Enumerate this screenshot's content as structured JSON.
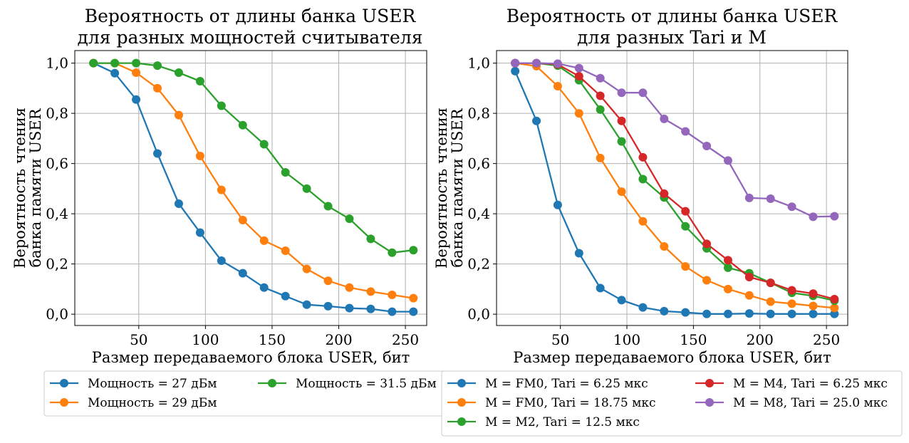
{
  "chart_data": [
    {
      "type": "line",
      "title_line1": "Вероятность от длины банка USER",
      "title_line2": "для разных мощностей считывателя",
      "xlabel": "Размер передаваемого блока USER, бит",
      "ylabel_line1": "Вероятность чтения",
      "ylabel_line2": "банка памяти USER",
      "xlim": [
        2,
        266
      ],
      "ylim": [
        -0.045,
        1.05
      ],
      "xticks": [
        50,
        100,
        150,
        200,
        250
      ],
      "yticks": [
        0.0,
        0.2,
        0.4,
        0.6,
        0.8,
        1.0
      ],
      "ytick_labels": [
        "0,0",
        "0,2",
        "0,4",
        "0,6",
        "0,8",
        "1,0"
      ],
      "grid": true,
      "legend_placement": "below",
      "x": [
        16,
        32,
        48,
        64,
        80,
        96,
        112,
        128,
        144,
        160,
        176,
        192,
        208,
        224,
        240,
        256
      ],
      "series": [
        {
          "name": "Мощность = 27 дБм",
          "color": "#1f77b4",
          "values": [
            1.0,
            0.96,
            0.855,
            0.64,
            0.44,
            0.325,
            0.213,
            0.163,
            0.106,
            0.072,
            0.038,
            0.032,
            0.024,
            0.021,
            0.01,
            0.01
          ]
        },
        {
          "name": "Мощность = 29 дБм",
          "color": "#ff7f0e",
          "values": [
            1.0,
            1.0,
            0.962,
            0.9,
            0.793,
            0.63,
            0.495,
            0.375,
            0.293,
            0.253,
            0.18,
            0.133,
            0.106,
            0.09,
            0.077,
            0.064
          ]
        },
        {
          "name": "Мощность = 31.5 дБм",
          "color": "#2ca02c",
          "values": [
            1.0,
            1.0,
            1.0,
            0.99,
            0.962,
            0.928,
            0.83,
            0.753,
            0.677,
            0.565,
            0.5,
            0.43,
            0.38,
            0.3,
            0.245,
            0.255
          ]
        }
      ]
    },
    {
      "type": "line",
      "title_line1": "Вероятность от длины банка USER",
      "title_line2": "для разных Tari и M",
      "xlabel": "Размер передаваемого блока USER, бит",
      "ylabel_line1": "Вероятность чтения",
      "ylabel_line2": "банка памяти USER",
      "xlim": [
        2,
        266
      ],
      "ylim": [
        -0.045,
        1.05
      ],
      "xticks": [
        50,
        100,
        150,
        200,
        250
      ],
      "yticks": [
        0.0,
        0.2,
        0.4,
        0.6,
        0.8,
        1.0
      ],
      "ytick_labels": [
        "0,0",
        "0,2",
        "0,4",
        "0,6",
        "0,8",
        "1,0"
      ],
      "grid": true,
      "legend_placement": "below",
      "x": [
        16,
        32,
        48,
        64,
        80,
        96,
        112,
        128,
        144,
        160,
        176,
        192,
        208,
        224,
        240,
        256
      ],
      "series": [
        {
          "name": "M = FM0, Tari = 6.25 мкс",
          "color": "#1f77b4",
          "values": [
            0.968,
            0.77,
            0.435,
            0.243,
            0.104,
            0.056,
            0.027,
            0.012,
            0.007,
            0.001,
            0.001,
            0.003,
            0.001,
            0.001,
            0.001,
            0.001
          ]
        },
        {
          "name": "M = FM0, Tari = 18.75 мкс",
          "color": "#ff7f0e",
          "values": [
            1.0,
            0.988,
            0.908,
            0.8,
            0.622,
            0.488,
            0.37,
            0.27,
            0.19,
            0.135,
            0.1,
            0.075,
            0.05,
            0.042,
            0.033,
            0.025
          ]
        },
        {
          "name": "M = M2, Tari = 12.5 мкс",
          "color": "#2ca02c",
          "values": [
            1.0,
            1.0,
            0.99,
            0.932,
            0.815,
            0.688,
            0.538,
            0.465,
            0.35,
            0.262,
            0.185,
            0.163,
            0.125,
            0.085,
            0.073,
            0.054
          ]
        },
        {
          "name": "M = M4, Tari = 6.25 мкс",
          "color": "#d62728",
          "values": [
            1.0,
            1.0,
            0.995,
            0.948,
            0.87,
            0.77,
            0.625,
            0.48,
            0.41,
            0.28,
            0.215,
            0.148,
            0.125,
            0.095,
            0.082,
            0.06
          ]
        },
        {
          "name": "M = M8, Tari = 25.0 мкс",
          "color": "#9467bd",
          "values": [
            1.0,
            1.0,
            0.998,
            0.98,
            0.94,
            0.882,
            0.882,
            0.778,
            0.728,
            0.67,
            0.612,
            0.463,
            0.46,
            0.428,
            0.388,
            0.39
          ]
        }
      ]
    }
  ]
}
